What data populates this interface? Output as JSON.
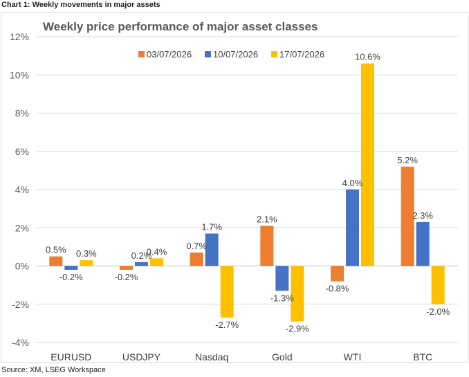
{
  "caption": "Chart 1: Weekly movements in major assets",
  "source": "Source: XM, LSEG Workspace",
  "chart_data": {
    "type": "bar",
    "title": "Weekly price performance of major asset classes",
    "categories": [
      "EURUSD",
      "USDJPY",
      "Nasdaq",
      "Gold",
      "WTI",
      "BTC"
    ],
    "series": [
      {
        "name": "03/07/2026",
        "color": "#ed7d31",
        "values": [
          0.5,
          -0.2,
          0.7,
          2.1,
          -0.8,
          5.2
        ],
        "labels": [
          "0.5%",
          "-0.2%",
          "0.7%",
          "2.1%",
          "-0.8%",
          "5.2%"
        ]
      },
      {
        "name": "10/07/2026",
        "color": "#4472c4",
        "values": [
          -0.2,
          0.2,
          1.7,
          -1.3,
          4.0,
          2.3
        ],
        "labels": [
          "-0.2%",
          "0.2%",
          "1.7%",
          "-1.3%",
          "4.0%",
          "2.3%"
        ]
      },
      {
        "name": "17/07/2026",
        "color": "#ffc000",
        "values": [
          0.3,
          0.4,
          -2.7,
          -2.9,
          10.6,
          -2.0
        ],
        "labels": [
          "0.3%",
          "0.4%",
          "-2.7%",
          "-2.9%",
          "10.6%",
          "-2.0%"
        ]
      }
    ],
    "ylim": [
      -4,
      12
    ],
    "yticks": [
      -4,
      -2,
      0,
      2,
      4,
      6,
      8,
      10,
      12
    ],
    "ytick_labels": [
      "-4%",
      "-2%",
      "0%",
      "2%",
      "4%",
      "6%",
      "8%",
      "10%",
      "12%"
    ],
    "xlabel": "",
    "ylabel": "",
    "grid": true,
    "legend_position": "top"
  }
}
